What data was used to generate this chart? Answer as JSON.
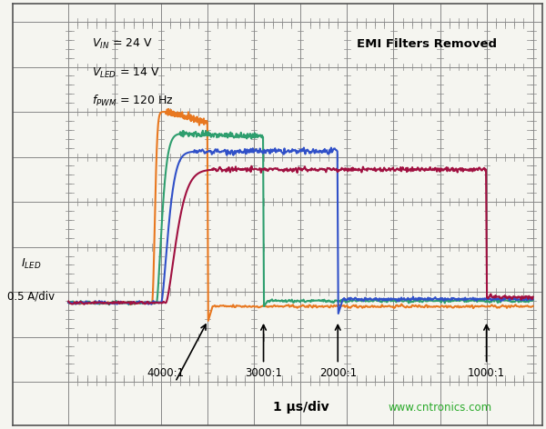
{
  "title": "",
  "background_color": "#f5f5f0",
  "plot_bg_color": "#f5f5f0",
  "grid_color": "#888888",
  "text_annotation_left": "V$_{IN}$ = 24 V\nV$_{LED}$ = 14 V\nf$_{PWM}$ = 120 Hz",
  "text_annotation_right": "EMI Filters Removed",
  "ylabel_line1": "I$_{LED}$",
  "ylabel_line2": "0.5 A/div",
  "xlabel": "1 μs/div",
  "watermark": "www.cntronics.com",
  "ratio_labels": [
    "4000:1",
    "3000:1",
    "2000:1",
    "1000:1"
  ],
  "colors": {
    "orange": "#E87820",
    "green": "#2E9E6E",
    "blue": "#3050C8",
    "red": "#A01040"
  },
  "xlim": [
    0,
    10
  ],
  "ylim": [
    -2,
    8
  ],
  "num_x_divs": 10,
  "num_y_divs": 8
}
